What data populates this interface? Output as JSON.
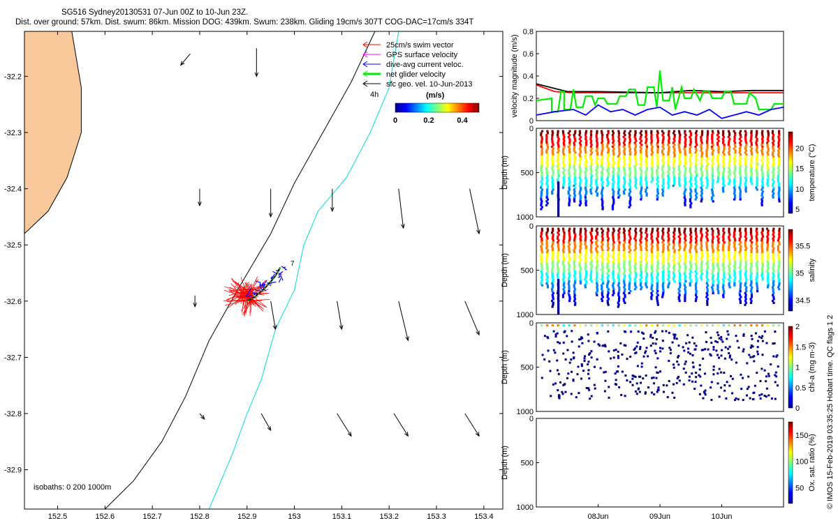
{
  "header": {
    "line1": "SG516 Sydney20130531 07-Jun 00Z to 10-Jun 23Z.",
    "line2": "Dist. over ground: 57km. Dist. swum: 86km. Mission DOG: 439km. Swum: 238km. Gliding 19cm/s 307T COG-DAC=17cm/s 334T"
  },
  "side_credit": "© IMOS 15-Feb-2019 03:35:25 Hobart time. QC flags 1  2",
  "colors": {
    "land": "#f9c99b",
    "swim": "#ff0000",
    "gps": "#ff00ff",
    "dive": "#0000ff",
    "net": "#00ee00",
    "sfc": "#000000",
    "isobath200": "#000000",
    "isobath1000": "#00dddd",
    "cb": [
      "#00008f",
      "#0000ff",
      "#0080ff",
      "#00ffff",
      "#80ff80",
      "#ffff00",
      "#ff8000",
      "#ff0000",
      "#800000"
    ]
  },
  "chart_data": [
    {
      "type": "map",
      "xlim": [
        152.43,
        153.44
      ],
      "ylim": [
        -32.97,
        -32.12
      ],
      "xticks": [
        "152.5",
        "152.6",
        "152.7",
        "152.8",
        "152.9",
        "153",
        "153.1",
        "153.2",
        "153.3",
        "153.4"
      ],
      "xtick_values": [
        152.5,
        152.6,
        152.7,
        152.8,
        152.9,
        153.0,
        153.1,
        153.2,
        153.3,
        153.4
      ],
      "yticks": [
        "-32.2",
        "-32.3",
        "-32.4",
        "-32.5",
        "-32.6",
        "-32.7",
        "-32.8",
        "-32.9"
      ],
      "ytick_values": [
        -32.2,
        -32.3,
        -32.4,
        -32.5,
        -32.6,
        -32.7,
        -32.8,
        -32.9
      ],
      "legend": [
        {
          "label": "25cm/s swim vector",
          "color_key": "swim"
        },
        {
          "label": "GPS surface velocity",
          "color_key": "gps"
        },
        {
          "label": "dive-avg current veloc.",
          "color_key": "dive"
        },
        {
          "label": "net glider velocity",
          "color_key": "net"
        },
        {
          "label": "sfc geo. vel. 10-Jun-2013",
          "color_key": "sfc"
        }
      ],
      "legend_extra": "4h",
      "colorbar": {
        "title": "(m/s)",
        "ticks": [
          "0",
          "0.2",
          "0.4"
        ],
        "range": [
          0,
          0.5
        ]
      },
      "isobath_label": "isobaths: 0   200  1000m",
      "day_marker": "7",
      "coast_points": [
        [
          152.43,
          -32.12
        ],
        [
          152.43,
          -32.48
        ],
        [
          152.48,
          -32.44
        ],
        [
          152.52,
          -32.38
        ],
        [
          152.55,
          -32.3
        ],
        [
          152.55,
          -32.22
        ],
        [
          152.53,
          -32.12
        ]
      ],
      "isobath_200": [
        [
          153.17,
          -32.12
        ],
        [
          153.12,
          -32.21
        ],
        [
          153.06,
          -32.3
        ],
        [
          153.0,
          -32.39
        ],
        [
          152.95,
          -32.48
        ],
        [
          152.88,
          -32.58
        ],
        [
          152.82,
          -32.67
        ],
        [
          152.77,
          -32.77
        ],
        [
          152.72,
          -32.85
        ],
        [
          152.66,
          -32.92
        ],
        [
          152.6,
          -32.97
        ]
      ],
      "isobath_1000": [
        [
          153.22,
          -32.12
        ],
        [
          153.2,
          -32.22
        ],
        [
          153.16,
          -32.3
        ],
        [
          153.11,
          -32.38
        ],
        [
          153.05,
          -32.44
        ],
        [
          153.02,
          -32.5
        ],
        [
          153.0,
          -32.58
        ],
        [
          152.96,
          -32.65
        ],
        [
          152.93,
          -32.74
        ],
        [
          152.9,
          -32.8
        ],
        [
          152.87,
          -32.87
        ],
        [
          152.82,
          -32.97
        ]
      ],
      "glider_track": [
        [
          152.9,
          -32.6
        ],
        [
          152.92,
          -32.59
        ],
        [
          152.94,
          -32.575
        ],
        [
          152.96,
          -32.555
        ],
        [
          152.97,
          -32.54
        ]
      ],
      "sfc_arrows": [
        [
          152.78,
          -32.16,
          -0.02,
          -0.02
        ],
        [
          152.92,
          -32.15,
          0.0,
          -0.05
        ],
        [
          152.8,
          -32.4,
          0.0,
          -0.03
        ],
        [
          152.95,
          -32.4,
          0.0,
          -0.05
        ],
        [
          153.08,
          -32.4,
          0.0,
          -0.04
        ],
        [
          153.22,
          -32.4,
          0.01,
          -0.07
        ],
        [
          153.37,
          -32.4,
          0.02,
          -0.08
        ],
        [
          152.79,
          -32.59,
          0.0,
          -0.02
        ],
        [
          152.95,
          -32.6,
          0.01,
          -0.05
        ],
        [
          153.09,
          -32.6,
          0.01,
          -0.05
        ],
        [
          153.22,
          -32.6,
          0.02,
          -0.07
        ],
        [
          153.36,
          -32.6,
          0.03,
          -0.06
        ],
        [
          152.8,
          -32.8,
          0.01,
          -0.01
        ],
        [
          152.93,
          -32.8,
          0.02,
          -0.03
        ],
        [
          153.09,
          -32.8,
          0.03,
          -0.04
        ],
        [
          153.21,
          -32.8,
          0.03,
          -0.04
        ],
        [
          153.36,
          -32.8,
          0.03,
          -0.04
        ]
      ]
    },
    {
      "type": "line",
      "ylabel": "velocity magnitude (m/s)",
      "ylim": [
        0,
        0.8
      ],
      "yticks": [
        "0",
        "0.2",
        "0.4",
        "0.6",
        "0.8"
      ],
      "x_range_days": [
        7.0,
        11.0
      ],
      "series": [
        {
          "color_key": "swim",
          "values": [
            [
              7.0,
              0.32
            ],
            [
              7.3,
              0.26
            ],
            [
              7.6,
              0.25
            ],
            [
              11.0,
              0.25
            ]
          ]
        },
        {
          "color_key": "sfc",
          "values": [
            [
              7.0,
              0.33
            ],
            [
              7.5,
              0.26
            ],
            [
              8.0,
              0.26
            ],
            [
              9.0,
              0.25
            ],
            [
              9.5,
              0.27
            ],
            [
              10.0,
              0.26
            ],
            [
              10.5,
              0.27
            ],
            [
              11.0,
              0.27
            ]
          ]
        },
        {
          "color_key": "net",
          "values": [
            [
              7.0,
              0.18
            ],
            [
              7.25,
              0.2
            ],
            [
              7.25,
              0.08
            ],
            [
              7.35,
              0.08
            ],
            [
              7.4,
              0.26
            ],
            [
              7.45,
              0.26
            ],
            [
              7.45,
              0.1
            ],
            [
              7.55,
              0.1
            ],
            [
              7.6,
              0.28
            ],
            [
              7.65,
              0.12
            ],
            [
              7.75,
              0.12
            ],
            [
              7.8,
              0.22
            ],
            [
              7.9,
              0.22
            ],
            [
              7.95,
              0.14
            ],
            [
              8.0,
              0.2
            ],
            [
              8.1,
              0.2
            ],
            [
              8.15,
              0.15
            ],
            [
              8.3,
              0.15
            ],
            [
              8.35,
              0.22
            ],
            [
              8.45,
              0.22
            ],
            [
              8.5,
              0.28
            ],
            [
              8.6,
              0.28
            ],
            [
              8.65,
              0.14
            ],
            [
              8.75,
              0.14
            ],
            [
              8.8,
              0.3
            ],
            [
              8.9,
              0.3
            ],
            [
              8.95,
              0.12
            ],
            [
              9.0,
              0.45
            ],
            [
              9.05,
              0.18
            ],
            [
              9.15,
              0.18
            ],
            [
              9.2,
              0.3
            ],
            [
              9.25,
              0.1
            ],
            [
              9.35,
              0.3
            ],
            [
              9.4,
              0.2
            ],
            [
              9.5,
              0.2
            ],
            [
              9.55,
              0.28
            ],
            [
              9.65,
              0.18
            ],
            [
              9.7,
              0.26
            ],
            [
              9.8,
              0.26
            ],
            [
              9.85,
              0.2
            ],
            [
              10.0,
              0.2
            ],
            [
              10.05,
              0.26
            ],
            [
              10.15,
              0.26
            ],
            [
              10.2,
              0.15
            ],
            [
              10.4,
              0.15
            ],
            [
              10.45,
              0.25
            ],
            [
              10.55,
              0.2
            ],
            [
              10.6,
              0.1
            ],
            [
              10.8,
              0.1
            ],
            [
              10.85,
              0.15
            ],
            [
              11.0,
              0.15
            ]
          ]
        },
        {
          "color_key": "dive",
          "values": [
            [
              7.0,
              0.05
            ],
            [
              7.3,
              0.08
            ],
            [
              7.6,
              0.1
            ],
            [
              7.8,
              0.05
            ],
            [
              8.0,
              0.14
            ],
            [
              8.2,
              0.08
            ],
            [
              8.4,
              0.1
            ],
            [
              8.6,
              0.05
            ],
            [
              8.8,
              0.1
            ],
            [
              9.0,
              0.12
            ],
            [
              9.2,
              0.05
            ],
            [
              9.4,
              0.08
            ],
            [
              9.6,
              0.05
            ],
            [
              9.8,
              0.1
            ],
            [
              10.0,
              0.02
            ],
            [
              10.2,
              0.05
            ],
            [
              10.4,
              0.08
            ],
            [
              10.6,
              0.05
            ],
            [
              10.8,
              0.1
            ],
            [
              11.0,
              0.12
            ]
          ]
        }
      ]
    },
    {
      "type": "scatter",
      "ylabel": "Depth (m)",
      "yticks": [
        "0",
        "500",
        "1000"
      ],
      "cblabel": "temperature (°C)",
      "cbticks": [
        "5",
        "10",
        "15",
        "20"
      ],
      "cbrange": [
        4,
        24
      ],
      "ylim": [
        0,
        1000
      ]
    },
    {
      "type": "scatter",
      "ylabel": "Depth (m)",
      "yticks": [
        "0",
        "500",
        "1000"
      ],
      "cblabel": "salinity",
      "cbticks": [
        "34.5",
        "35",
        "35.5"
      ],
      "cbrange": [
        34.3,
        35.8
      ],
      "ylim": [
        0,
        1000
      ]
    },
    {
      "type": "scatter",
      "ylabel": "Depth (m)",
      "yticks": [
        "0",
        "500",
        "1000"
      ],
      "cblabel": "chl-a (mg m-3)",
      "cbticks": [
        "0",
        "0.5",
        "1",
        "1.5",
        "2"
      ],
      "cbrange": [
        0,
        2
      ],
      "ylim": [
        0,
        1000
      ]
    },
    {
      "type": "scatter",
      "ylabel": "Depth (m)",
      "yticks": [
        "0",
        "500",
        "1000"
      ],
      "cblabel": "Ox. sat. ratio (%)",
      "cbticks": [
        "50",
        "100",
        "150"
      ],
      "cbrange": [
        20,
        175
      ],
      "ylim": [
        0,
        1000
      ],
      "xticks": [
        "08Jun",
        "09Jun",
        "10Jun"
      ],
      "xtick_days": [
        8,
        9,
        10
      ]
    }
  ]
}
